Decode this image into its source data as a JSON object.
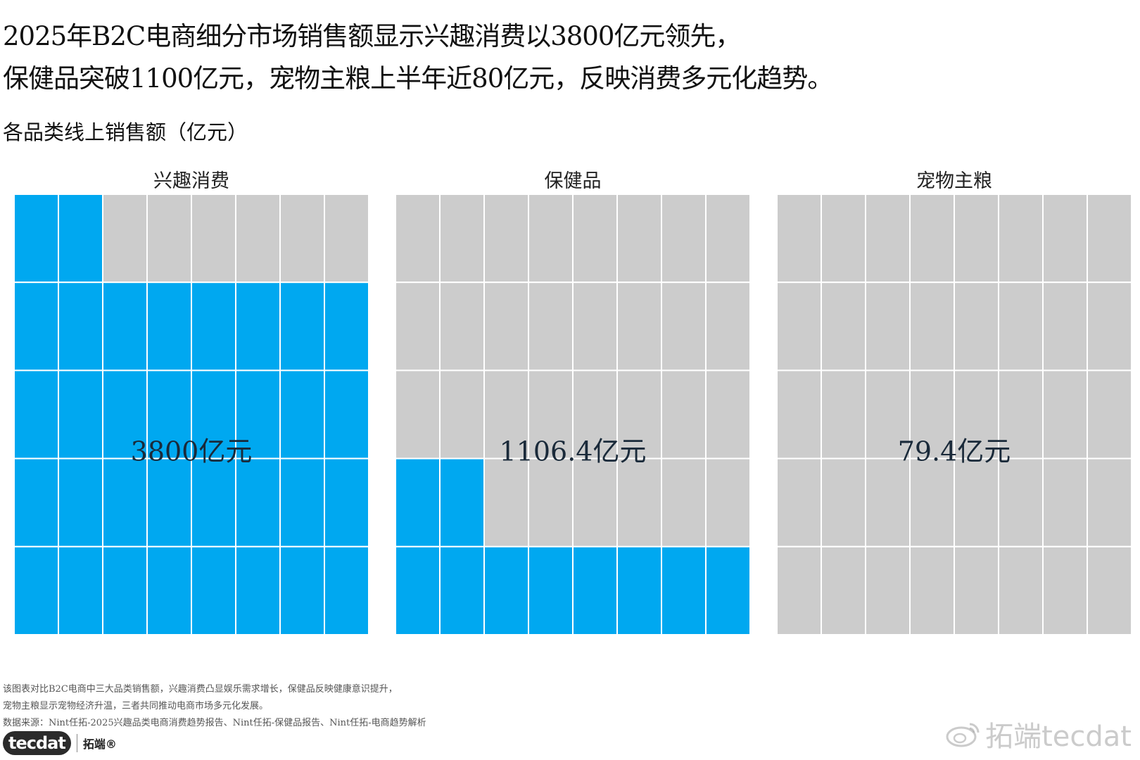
{
  "headline": {
    "line1": "2025年B2C电商细分市场销售额显示兴趣消费以3800亿元领先，",
    "line2": "保健品突破1100亿元，宠物主粮上半年近80亿元，反映消费多元化趋势。"
  },
  "subtitle": "各品类线上销售额（亿元）",
  "chart_data": {
    "type": "waffle",
    "grid": {
      "rows": 5,
      "cols": 8
    },
    "fill_color": "#00a8f0",
    "empty_color": "#cccccc",
    "panels": [
      {
        "name": "兴趣消费",
        "filled_cells": 34,
        "value_label": "3800亿元"
      },
      {
        "name": "保健品",
        "filled_cells": 10,
        "value_label": "1106.4亿元"
      },
      {
        "name": "宠物主粮",
        "filled_cells": 0,
        "value_label": "79.4亿元"
      }
    ]
  },
  "notes": {
    "line1": "该图表对比B2C电商中三大品类销售额，兴趣消费凸显娱乐需求增长，保健品反映健康意识提升，",
    "line2": "宠物主粮显示宠物经济升温，三者共同推动电商市场多元化发展。",
    "source": "数据来源：Nint任拓-2025兴趣品类电商消费趋势报告、Nint任拓-保健品报告、Nint任拓-电商趋势解析"
  },
  "logo": {
    "mark": "tecdat",
    "text": "拓端®"
  },
  "watermark": "拓端tecdat"
}
